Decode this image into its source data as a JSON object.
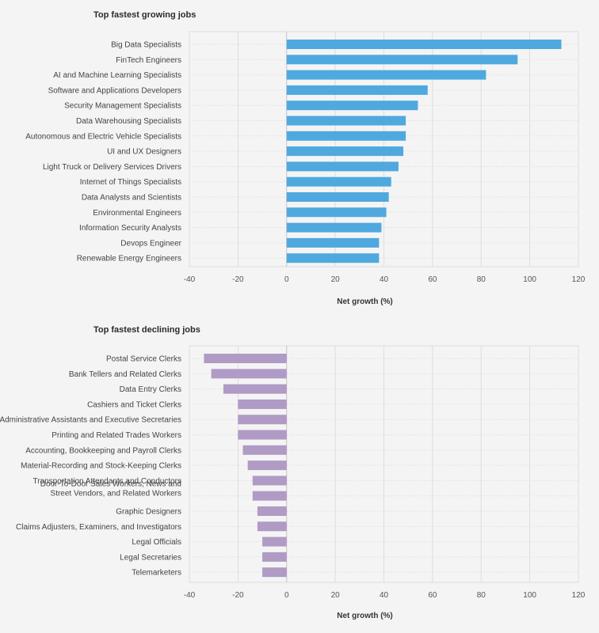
{
  "chart_data": [
    {
      "type": "bar",
      "orientation": "horizontal",
      "title": "Top fastest growing jobs",
      "xlabel": "Net growth (%)",
      "xlim": [
        -40,
        120
      ],
      "ticks": [
        -40,
        -20,
        0,
        20,
        40,
        60,
        80,
        100,
        120
      ],
      "grid": true,
      "bar_color": "#4fa9df",
      "categories": [
        "Big Data Specialists",
        "FinTech Engineers",
        "AI and Machine Learning Specialists",
        "Software and Applications Developers",
        "Security Management Specialists",
        "Data Warehousing Specialists",
        "Autonomous and Electric Vehicle Specialists",
        "UI and UX Designers",
        "Light Truck or Delivery Services Drivers",
        "Internet of Things Specialists",
        "Data Analysts and Scientists",
        "Environmental Engineers",
        "Information Security Analysts",
        "Devops Engineer",
        "Renewable Energy Engineers"
      ],
      "values": [
        113,
        95,
        82,
        58,
        54,
        49,
        49,
        48,
        46,
        43,
        42,
        41,
        39,
        38,
        38
      ]
    },
    {
      "type": "bar",
      "orientation": "horizontal",
      "title": "Top fastest declining jobs",
      "xlabel": "Net growth (%)",
      "xlim": [
        -40,
        120
      ],
      "ticks": [
        -40,
        -20,
        0,
        20,
        40,
        60,
        80,
        100,
        120
      ],
      "grid": true,
      "bar_color": "#b09ac6",
      "categories": [
        "Postal Service Clerks",
        "Bank Tellers and Related Clerks",
        "Data Entry Clerks",
        "Cashiers and Ticket Clerks",
        "Administrative Assistants and Executive Secretaries",
        "Printing and Related Trades Workers",
        "Accounting, Bookkeeping and Payroll Clerks",
        "Material-Recording and Stock-Keeping Clerks",
        "Transportation Attendants and Conductors",
        "Door-To-Door Sales Workers, News and Street Vendors, and Related Workers",
        "Graphic Designers",
        "Claims Adjusters, Examiners, and Investigators",
        "Legal Officials",
        "Legal Secretaries",
        "Telemarketers"
      ],
      "category_lines": {
        "9": [
          "Door-To-Door Sales Workers, News and",
          "Street Vendors, and Related Workers"
        ]
      },
      "values": [
        -34,
        -31,
        -26,
        -20,
        -20,
        -20,
        -18,
        -16,
        -14,
        -14,
        -12,
        -12,
        -10,
        -10,
        -10
      ]
    }
  ]
}
